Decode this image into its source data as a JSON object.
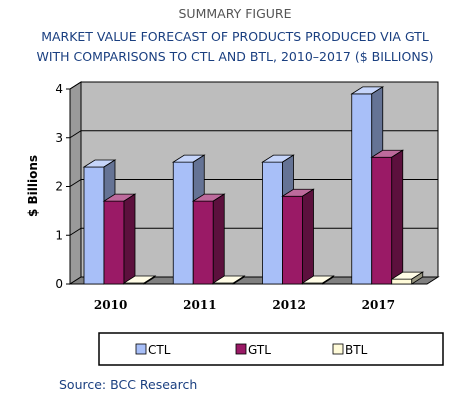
{
  "header": {
    "figure_label": "SUMMARY FIGURE",
    "title_line1": "MARKET VALUE FORECAST OF PRODUCTS PRODUCED VIA GTL",
    "title_line2": "WITH COMPARISONS TO CTL AND BTL, 2010–2017  ($ BILLIONS)"
  },
  "footer": {
    "source": "Source: BCC Research"
  },
  "colors": {
    "CTL": "#a8bff8",
    "GTL": "#9a1a66",
    "BTL": "#fffbd9",
    "wall": "#bdbdbd",
    "floor": "#808080"
  },
  "chart_data": {
    "type": "bar",
    "title": "MARKET VALUE FORECAST OF PRODUCTS PRODUCED VIA GTL WITH COMPARISONS TO CTL AND BTL, 2010–2017  ($ BILLIONS)",
    "xlabel": "",
    "ylabel": "$ Billions",
    "categories": [
      "2010",
      "2011",
      "2012",
      "2017"
    ],
    "ylim": [
      0,
      4
    ],
    "yticks": [
      "0",
      "1",
      "2",
      "3",
      "4"
    ],
    "grid": true,
    "legend_position": "bottom",
    "series": [
      {
        "name": "CTL",
        "values": [
          2.4,
          2.5,
          2.5,
          3.9
        ]
      },
      {
        "name": "GTL",
        "values": [
          1.7,
          1.7,
          1.8,
          2.6
        ]
      },
      {
        "name": "BTL",
        "values": [
          0.02,
          0.02,
          0.02,
          0.1
        ]
      }
    ]
  }
}
